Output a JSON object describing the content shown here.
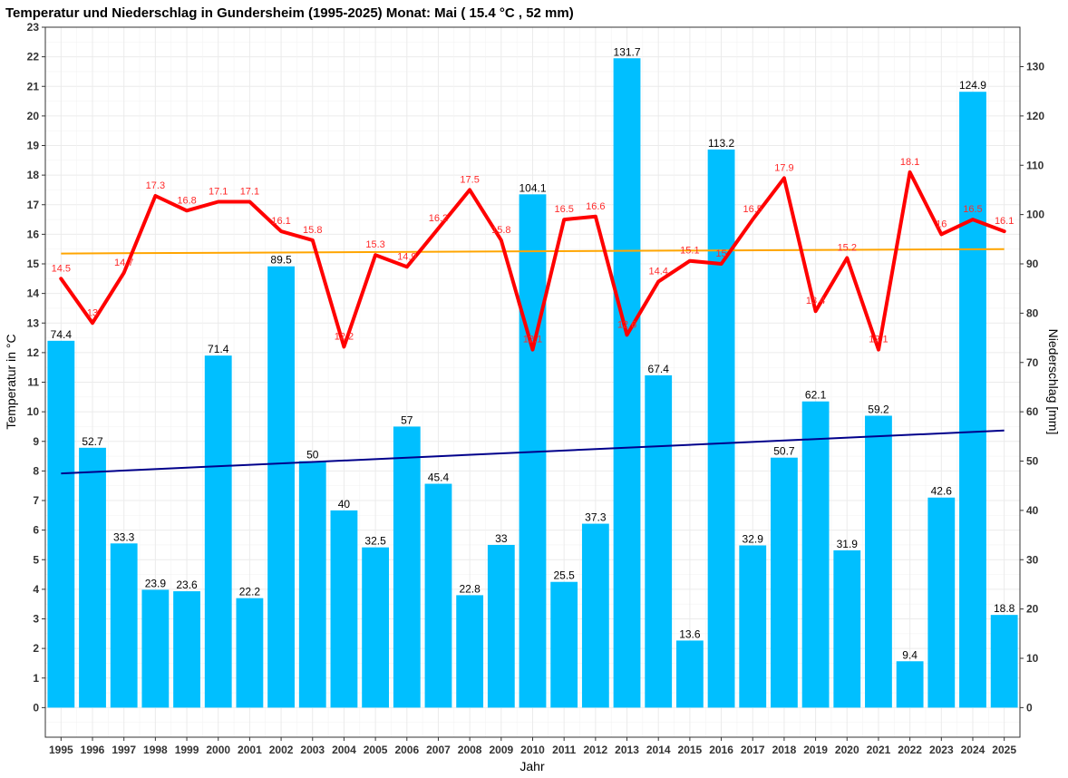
{
  "chart_data": {
    "type": "bar",
    "title": "Temperatur und Niederschlag in Gundersheim (1995-2025) Monat: Mai ( 15.4 °C , 52 mm)",
    "xlabel": "Jahr",
    "ylabel_left": "Temperatur in °C",
    "ylabel_right": "Niederschlag [mm]",
    "categories": [
      "1995",
      "1996",
      "1997",
      "1998",
      "1999",
      "2000",
      "2001",
      "2002",
      "2003",
      "2004",
      "2005",
      "2006",
      "2007",
      "2008",
      "2009",
      "2010",
      "2011",
      "2012",
      "2013",
      "2014",
      "2015",
      "2016",
      "2017",
      "2018",
      "2019",
      "2020",
      "2021",
      "2022",
      "2023",
      "2024",
      "2025"
    ],
    "series": [
      {
        "name": "Niederschlag",
        "type": "bar",
        "axis": "right",
        "color": "#00bfff",
        "values": [
          74.4,
          52.7,
          33.3,
          23.9,
          23.6,
          71.4,
          22.2,
          89.5,
          50,
          40,
          32.5,
          57,
          45.4,
          22.8,
          33,
          104.1,
          25.5,
          37.3,
          131.7,
          67.4,
          13.6,
          113.2,
          32.9,
          50.7,
          62.1,
          31.9,
          59.2,
          9.4,
          42.6,
          124.9,
          18.8
        ],
        "labels": [
          "74.4",
          "52.7",
          "33.3",
          "23.9",
          "23.6",
          "71.4",
          "22.2",
          "89.5",
          "50",
          "40",
          "32.5",
          "57",
          "45.4",
          "22.8",
          "33",
          "104.1",
          "25.5",
          "37.3",
          "131.7",
          "67.4",
          "13.6",
          "113.2",
          "32.9",
          "50.7",
          "62.1",
          "31.9",
          "59.2",
          "9.4",
          "42.6",
          "124.9",
          "18.8"
        ]
      },
      {
        "name": "Temperatur",
        "type": "line",
        "axis": "left",
        "color": "#ff0000",
        "values": [
          14.5,
          13,
          14.7,
          17.3,
          16.8,
          17.1,
          17.1,
          16.1,
          15.8,
          12.2,
          15.3,
          14.9,
          16.2,
          17.5,
          15.8,
          12.1,
          16.5,
          16.6,
          12.6,
          14.4,
          15.1,
          15,
          16.5,
          17.9,
          13.4,
          15.2,
          12.1,
          18.1,
          16,
          16.5,
          16.1
        ],
        "labels": [
          "14.5",
          "13",
          "14.7",
          "17.3",
          "16.8",
          "17.1",
          "17.1",
          "16.1",
          "15.8",
          "12.2",
          "15.3",
          "14.9",
          "16.2",
          "17.5",
          "15.8",
          "12.1",
          "16.5",
          "16.6",
          "12.6",
          "14.4",
          "15.1",
          "15",
          "16.5",
          "17.9",
          "13.4",
          "15.2",
          "12.1",
          "18.1",
          "16",
          "16.5",
          "16.1"
        ]
      },
      {
        "type": "trend",
        "axis": "left",
        "color": "#ffa500",
        "start": 15.35,
        "end": 15.5
      },
      {
        "type": "trend",
        "axis": "right",
        "color": "#00008b",
        "start": 47.5,
        "end": 56.2
      }
    ],
    "ylim_left": [
      -1,
      23
    ],
    "yticks_left": [
      "0",
      "1",
      "2",
      "3",
      "4",
      "5",
      "6",
      "7",
      "8",
      "9",
      "10",
      "11",
      "12",
      "13",
      "14",
      "15",
      "16",
      "17",
      "18",
      "19",
      "20",
      "21",
      "22",
      "23"
    ],
    "ylim_right": [
      -6,
      138
    ],
    "yticks_right": [
      "0",
      "10",
      "20",
      "30",
      "40",
      "50",
      "60",
      "70",
      "80",
      "90",
      "100",
      "110",
      "120",
      "130"
    ],
    "grid": true,
    "legend": "none",
    "colors": {
      "background": "#ffffff",
      "grid": "#ebebeb",
      "panel_border": "#333333"
    }
  }
}
